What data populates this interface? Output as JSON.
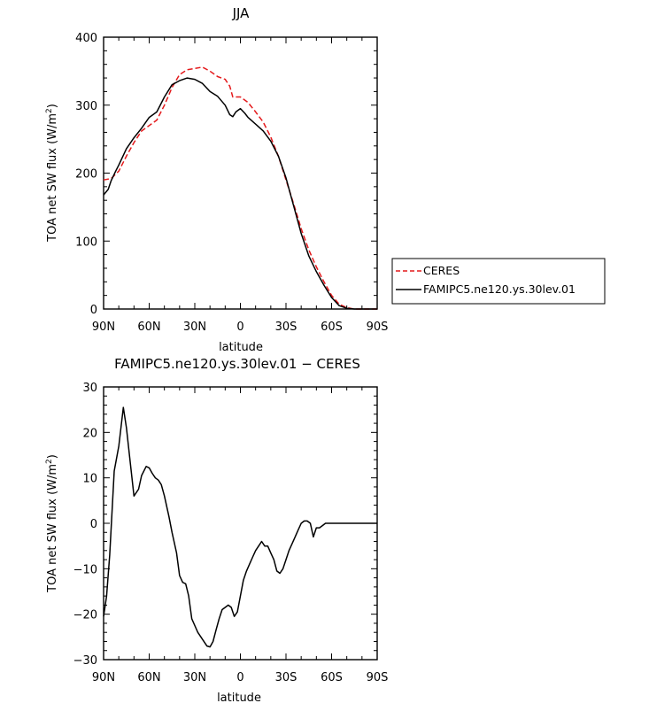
{
  "chart_data": [
    {
      "type": "line",
      "title": "JJA",
      "xlabel": "latitude",
      "ylabel": "TOA net SW flux (W/m",
      "ylabel_sup": "2",
      "ylabel_end": ")",
      "xlim": [
        90,
        -90
      ],
      "ylim": [
        0,
        400
      ],
      "xticks": [
        90,
        60,
        30,
        0,
        -30,
        -60,
        -90
      ],
      "xtick_labels": [
        "90N",
        "60N",
        "30N",
        "0",
        "30S",
        "60S",
        "90S"
      ],
      "yticks": [
        0,
        100,
        200,
        300,
        400
      ],
      "ytick_labels": [
        "0",
        "100",
        "200",
        "300",
        "400"
      ],
      "legend": "right",
      "series": [
        {
          "name": "CERES",
          "color": "#e41a1c",
          "dash": "dashed",
          "x": [
            90,
            85,
            80,
            75,
            70,
            65,
            60,
            55,
            50,
            45,
            40,
            35,
            30,
            25,
            20,
            15,
            10,
            7,
            5,
            0,
            -5,
            -10,
            -15,
            -20,
            -25,
            -30,
            -35,
            -40,
            -45,
            -50,
            -55,
            -60,
            -65,
            -70,
            -75,
            -80,
            -85,
            -90
          ],
          "y": [
            190,
            192,
            203,
            225,
            245,
            262,
            270,
            278,
            300,
            326,
            345,
            352,
            354,
            356,
            350,
            342,
            338,
            328,
            312,
            312,
            304,
            290,
            275,
            253,
            225,
            190,
            155,
            118,
            87,
            62,
            40,
            20,
            7,
            2,
            0,
            0,
            0,
            0
          ]
        },
        {
          "name": "FAMIPC5.ne120.ys.30lev.01",
          "color": "#000000",
          "dash": "solid",
          "x": [
            90,
            87,
            85,
            82,
            80,
            75,
            70,
            65,
            60,
            55,
            50,
            45,
            40,
            35,
            30,
            25,
            20,
            15,
            10,
            7,
            5,
            3,
            0,
            -3,
            -5,
            -10,
            -15,
            -20,
            -25,
            -30,
            -35,
            -40,
            -45,
            -50,
            -55,
            -60,
            -65,
            -70,
            -75,
            -80,
            -85,
            -90
          ],
          "y": [
            168,
            176,
            189,
            203,
            212,
            236,
            252,
            266,
            282,
            290,
            312,
            330,
            336,
            340,
            338,
            332,
            320,
            313,
            300,
            286,
            283,
            290,
            295,
            288,
            282,
            272,
            262,
            247,
            225,
            193,
            152,
            111,
            78,
            55,
            35,
            17,
            5,
            1,
            0,
            0,
            0,
            0
          ]
        }
      ]
    },
    {
      "type": "line",
      "title": "FAMIPC5.ne120.ys.30lev.01 − CERES",
      "xlabel": "latitude",
      "ylabel": "TOA net SW flux (W/m",
      "ylabel_sup": "2",
      "ylabel_end": ")",
      "xlim": [
        90,
        -90
      ],
      "ylim": [
        -30,
        30
      ],
      "xticks": [
        90,
        60,
        30,
        0,
        -30,
        -60,
        -90
      ],
      "xtick_labels": [
        "90N",
        "60N",
        "30N",
        "0",
        "30S",
        "60S",
        "90S"
      ],
      "yticks": [
        -30,
        -20,
        -10,
        0,
        10,
        20,
        30
      ],
      "ytick_labels": [
        "−30",
        "−20",
        "−10",
        "0",
        "10",
        "20",
        "30"
      ],
      "series": [
        {
          "color": "#000000",
          "dash": "solid",
          "x": [
            90,
            88,
            86,
            83,
            80,
            77,
            75,
            72,
            70,
            67,
            65,
            62,
            60,
            58,
            56,
            54,
            52,
            50,
            47,
            45,
            42,
            40,
            38,
            36,
            34,
            32,
            30,
            28,
            25,
            22,
            20,
            18,
            16,
            14,
            12,
            10,
            8,
            6,
            4,
            2,
            0,
            -2,
            -4,
            -6,
            -8,
            -10,
            -12,
            -14,
            -16,
            -18,
            -20,
            -22,
            -24,
            -26,
            -28,
            -30,
            -32,
            -34,
            -36,
            -38,
            -40,
            -42,
            -44,
            -46,
            -48,
            -50,
            -52,
            -54,
            -56,
            -58,
            -60,
            -62,
            -64,
            -66,
            -68,
            -70,
            -72,
            -75,
            -80,
            -85,
            -90
          ],
          "y": [
            -20.5,
            -16,
            -7,
            11.5,
            17,
            25.5,
            21,
            12,
            6,
            7.5,
            10.5,
            12.5,
            12.2,
            11,
            10,
            9.5,
            8.5,
            6,
            1.5,
            -2,
            -6.5,
            -11.5,
            -13,
            -13.3,
            -16,
            -21,
            -22.5,
            -24,
            -25.5,
            -27,
            -27.2,
            -26,
            -23.5,
            -21,
            -19,
            -18.5,
            -18,
            -18.5,
            -20.5,
            -19.5,
            -16,
            -12.5,
            -10.5,
            -9,
            -7.5,
            -6,
            -5,
            -4,
            -5,
            -5,
            -6.5,
            -8,
            -10.5,
            -11,
            -10,
            -8,
            -6,
            -4.5,
            -3,
            -1.5,
            0,
            0.5,
            0.5,
            0,
            -3,
            -1,
            -1,
            -0.5,
            0,
            0,
            0,
            0,
            0,
            0,
            0,
            0,
            0,
            0,
            0,
            0,
            0
          ]
        }
      ]
    }
  ]
}
